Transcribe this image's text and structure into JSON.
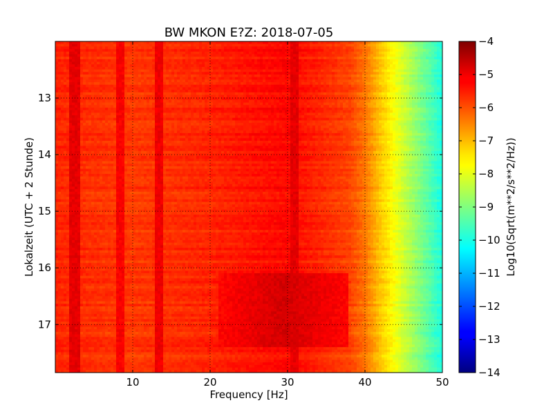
{
  "chart_data": {
    "type": "heatmap",
    "title": "BW MKON E?Z: 2018-07-05",
    "xlabel": "Frequency [Hz]",
    "ylabel": "Lokalzeit (UTC + 2 Stunde)",
    "colorbar_label": "Log10(Sqrt(m**2/s**2/Hz))",
    "xlim": [
      0,
      50
    ],
    "ylim": [
      17.85,
      12.0
    ],
    "x_ticks": [
      10,
      20,
      30,
      40,
      50
    ],
    "x_tick_labels": [
      "10",
      "20",
      "30",
      "40",
      "50"
    ],
    "y_ticks": [
      13,
      14,
      15,
      16,
      17
    ],
    "y_tick_labels": [
      "13",
      "14",
      "15",
      "16",
      "17"
    ],
    "colorbar_range": [
      -14,
      -4
    ],
    "colorbar_ticks": [
      -4,
      -5,
      -6,
      -7,
      -8,
      -9,
      -10,
      -11,
      -12,
      -13,
      -14
    ],
    "colorbar_tick_labels": [
      "−4",
      "−5",
      "−6",
      "−7",
      "−8",
      "−9",
      "−10",
      "−11",
      "−12",
      "−13",
      "−14"
    ],
    "colormap": "jet",
    "grid": true,
    "value_profile_by_frequency": {
      "frequency_hz": [
        0,
        5,
        10,
        20,
        30,
        38,
        40,
        42,
        44,
        46,
        48,
        50
      ],
      "log10_amplitude": [
        -5.6,
        -5.7,
        -5.8,
        -5.6,
        -5.3,
        -5.9,
        -6.4,
        -7.2,
        -7.9,
        -8.6,
        -9.3,
        -10.0
      ]
    },
    "bright_features": [
      {
        "frequency_hz": 2.5,
        "value": -5.0,
        "note": "vertical line"
      },
      {
        "frequency_hz": 8.5,
        "value": -5.2,
        "note": "vertical line"
      },
      {
        "frequency_hz": 13.5,
        "value": -5.1,
        "note": "vertical line"
      },
      {
        "frequency_hz": 31,
        "value": -5.0,
        "note": "vertical band"
      }
    ],
    "hot_region": {
      "frequency_hz": [
        21,
        38
      ],
      "time_h": [
        16.1,
        17.4
      ],
      "value": -4.8
    }
  }
}
